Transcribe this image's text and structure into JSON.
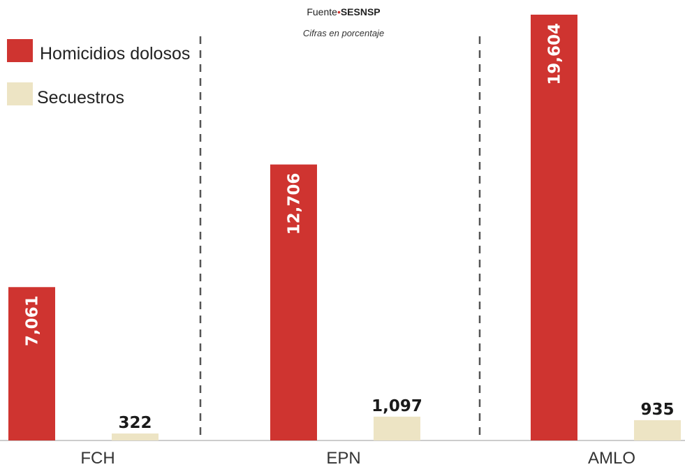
{
  "source": {
    "prefix": "Fuente",
    "name": "SESNSP"
  },
  "subtitle": "Cifras en porcentaje",
  "colors": {
    "homicidios": "#cf3430",
    "secuestros": "#ede4c4",
    "divider": "#555555",
    "text": "#222222"
  },
  "chart_data": {
    "type": "bar",
    "categories": [
      "FCH",
      "EPN",
      "AMLO"
    ],
    "series": [
      {
        "name": "Homicidios dolosos",
        "values": [
          7061,
          12706,
          19604
        ],
        "labels": [
          "7,061",
          "12,706",
          "19,604"
        ]
      },
      {
        "name": "Secuestros",
        "values": [
          322,
          1097,
          935
        ],
        "labels": [
          "322",
          "1,097",
          "935"
        ]
      }
    ],
    "legend": "top-left",
    "grid": false
  }
}
